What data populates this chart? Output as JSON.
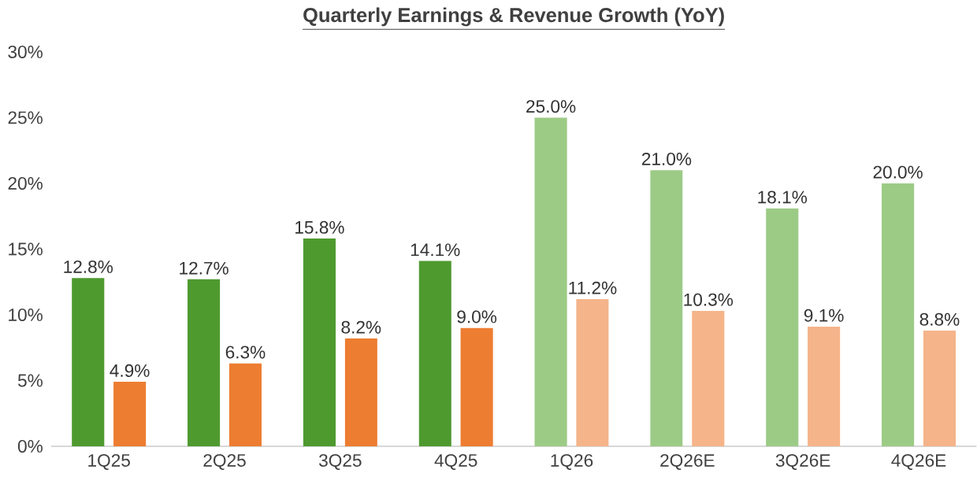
{
  "chart_data": {
    "type": "bar",
    "title": "Quarterly Earnings & Revenue Growth (YoY)",
    "categories": [
      "1Q25",
      "2Q25",
      "3Q25",
      "4Q25",
      "1Q26",
      "2Q26E",
      "3Q26E",
      "4Q26E"
    ],
    "series": [
      {
        "colors": [
          "#4e9a2f",
          "#4e9a2f",
          "#4e9a2f",
          "#4e9a2f",
          "#9ccb86",
          "#9ccb86",
          "#9ccb86",
          "#9ccb86"
        ],
        "values": [
          12.8,
          12.7,
          15.8,
          14.1,
          25.0,
          21.0,
          18.1,
          20.0
        ],
        "value_labels": [
          "12.8%",
          "12.7%",
          "15.8%",
          "14.1%",
          "25.0%",
          "21.0%",
          "18.1%",
          "20.0%"
        ]
      },
      {
        "colors": [
          "#ed7d31",
          "#ed7d31",
          "#ed7d31",
          "#ed7d31",
          "#f5b48a",
          "#f5b48a",
          "#f5b48a",
          "#f5b48a"
        ],
        "values": [
          4.9,
          6.3,
          8.2,
          9.0,
          11.2,
          10.3,
          9.1,
          8.8
        ],
        "value_labels": [
          "4.9%",
          "6.3%",
          "8.2%",
          "9.0%",
          "11.2%",
          "10.3%",
          "9.1%",
          "8.8%"
        ]
      }
    ],
    "ylim": [
      0,
      30
    ],
    "yticks": [
      {
        "value": 0,
        "label": "0%"
      },
      {
        "value": 5,
        "label": "5%"
      },
      {
        "value": 10,
        "label": "10%"
      },
      {
        "value": 15,
        "label": "15%"
      },
      {
        "value": 20,
        "label": "20%"
      },
      {
        "value": 25,
        "label": "25%"
      },
      {
        "value": 30,
        "label": "30%"
      }
    ],
    "grid": false
  }
}
